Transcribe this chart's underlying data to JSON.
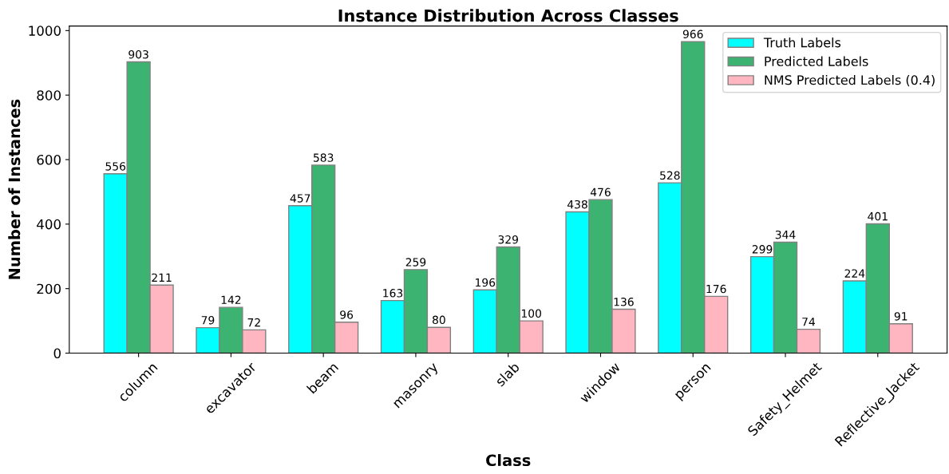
{
  "chart_data": {
    "type": "bar",
    "title": "Instance Distribution Across Classes",
    "xlabel": "Class",
    "ylabel": "Number of Instances",
    "categories": [
      "column",
      "excavator",
      "beam",
      "masonry",
      "slab",
      "window",
      "person",
      "Safety_Helmet",
      "Reflective_Jacket"
    ],
    "series": [
      {
        "name": "Truth Labels",
        "color": "#00ffff",
        "values": [
          556,
          79,
          457,
          163,
          196,
          438,
          528,
          299,
          224
        ]
      },
      {
        "name": "Predicted Labels",
        "color": "#3cb371",
        "values": [
          903,
          142,
          583,
          259,
          329,
          476,
          966,
          344,
          401
        ]
      },
      {
        "name": "NMS Predicted Labels (0.4)",
        "color": "#ffb6c1",
        "values": [
          211,
          72,
          96,
          80,
          100,
          136,
          176,
          74,
          91
        ]
      }
    ],
    "ylim": [
      0,
      1014
    ],
    "yticks": [
      0,
      200,
      400,
      600,
      800,
      1000
    ],
    "data_labels": true,
    "grid": false,
    "legend": "top right"
  }
}
